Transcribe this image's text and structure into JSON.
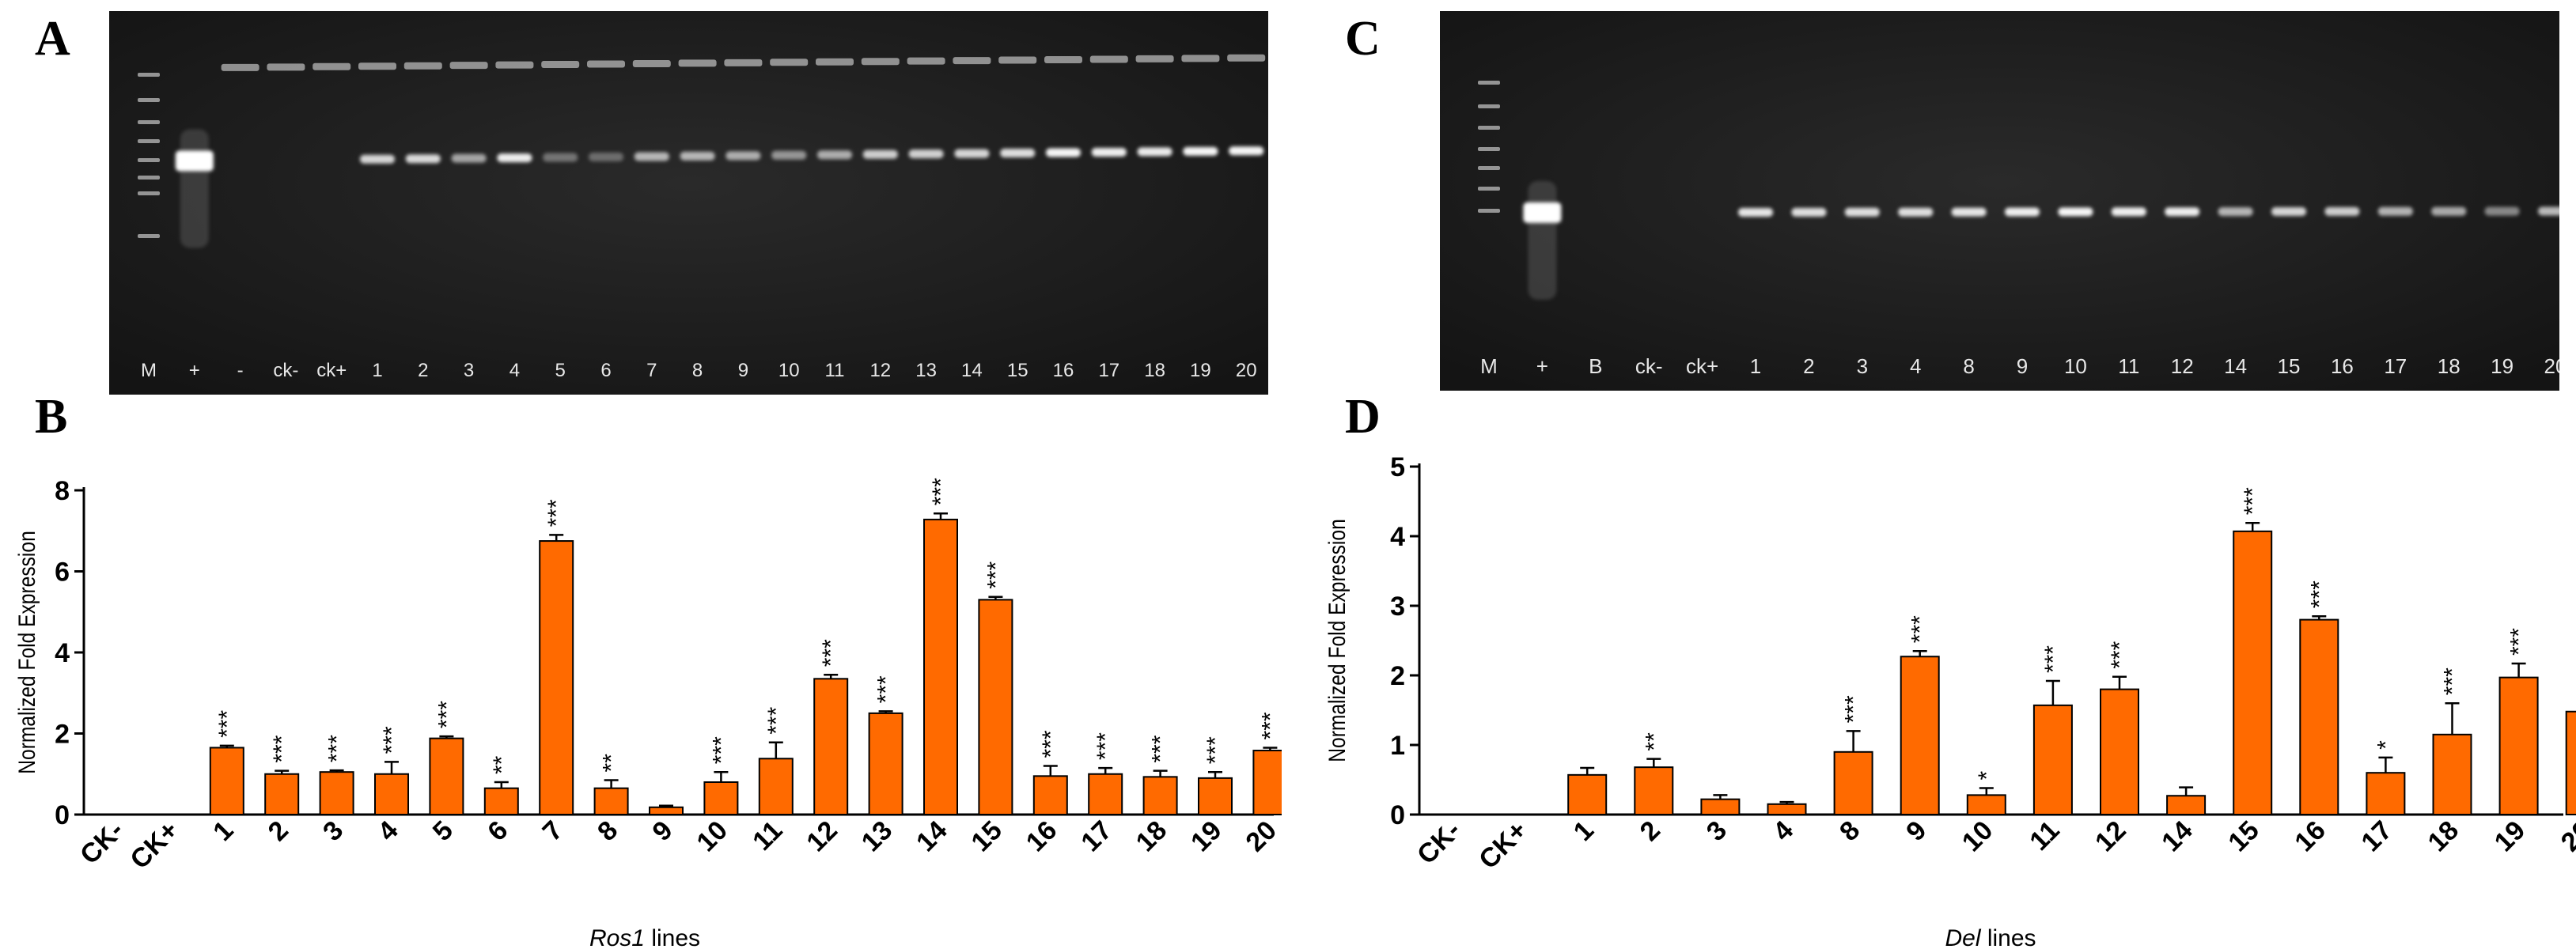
{
  "panels": {
    "a": {
      "letter": "A"
    },
    "b": {
      "letter": "B"
    },
    "c": {
      "letter": "C"
    },
    "d": {
      "letter": "D"
    }
  },
  "gel_a": {
    "lanes": [
      "M",
      "+",
      "-",
      "ck-",
      "ck+",
      "1",
      "2",
      "3",
      "4",
      "5",
      "6",
      "7",
      "8",
      "9",
      "10",
      "11",
      "12",
      "13",
      "14",
      "15",
      "16",
      "17",
      "18",
      "19",
      "20"
    ],
    "band_intensity": [
      0,
      1.0,
      0,
      0,
      0,
      0.75,
      0.78,
      0.45,
      0.9,
      0.15,
      0.1,
      0.55,
      0.55,
      0.5,
      0.35,
      0.5,
      0.7,
      0.72,
      0.75,
      0.8,
      0.95,
      0.9,
      0.88,
      0.95,
      0.95
    ]
  },
  "gel_c": {
    "lanes": [
      "M",
      "+",
      "B",
      "ck-",
      "ck+",
      "1",
      "2",
      "3",
      "4",
      "8",
      "9",
      "10",
      "11",
      "12",
      "14",
      "15",
      "16",
      "17",
      "18",
      "19",
      "20"
    ],
    "band_intensity": [
      0,
      1.0,
      0,
      0,
      0,
      0.85,
      0.8,
      0.8,
      0.8,
      0.85,
      0.9,
      0.95,
      0.9,
      0.9,
      0.55,
      0.75,
      0.7,
      0.55,
      0.5,
      0.3,
      0.6
    ]
  },
  "chart_data": [
    {
      "type": "bar",
      "ylabel": "Normalized Fold Expression",
      "xlabel_italic": "Ros1",
      "xlabel_rest": " lines",
      "ylim": [
        0,
        8
      ],
      "yticks": [
        0,
        2,
        4,
        6,
        8
      ],
      "color": "#ff6a00",
      "categories": [
        "CK-",
        "CK+",
        "1",
        "2",
        "3",
        "4",
        "5",
        "6",
        "7",
        "8",
        "9",
        "10",
        "11",
        "12",
        "13",
        "14",
        "15",
        "16",
        "17",
        "18",
        "19",
        "20"
      ],
      "values": [
        0,
        0,
        1.65,
        1.0,
        1.05,
        1.0,
        1.88,
        0.65,
        6.75,
        0.65,
        0.18,
        0.8,
        1.38,
        3.35,
        2.5,
        7.28,
        5.3,
        0.95,
        1.0,
        0.93,
        0.9,
        1.58
      ],
      "errors": [
        0,
        0,
        0.05,
        0.08,
        0.04,
        0.3,
        0.05,
        0.15,
        0.15,
        0.2,
        0.04,
        0.25,
        0.4,
        0.1,
        0.05,
        0.15,
        0.07,
        0.25,
        0.15,
        0.15,
        0.15,
        0.07
      ],
      "significance": [
        "",
        "",
        "***",
        "***",
        "***",
        "***",
        "***",
        "**",
        "***",
        "**",
        "",
        "***",
        "***",
        "***",
        "***",
        "***",
        "***",
        "***",
        "***",
        "***",
        "***",
        "***"
      ]
    },
    {
      "type": "bar",
      "ylabel": "Normalized Fold Expression",
      "xlabel_italic": "Del",
      "xlabel_rest": " lines",
      "ylim": [
        0,
        5
      ],
      "yticks": [
        0,
        1,
        2,
        3,
        4,
        5
      ],
      "color": "#ff6a00",
      "categories": [
        "CK-",
        "CK+",
        "1",
        "2",
        "3",
        "4",
        "8",
        "9",
        "10",
        "11",
        "12",
        "14",
        "15",
        "16",
        "17",
        "18",
        "19",
        "20"
      ],
      "values": [
        0,
        0,
        0.57,
        0.68,
        0.22,
        0.15,
        0.9,
        2.27,
        0.28,
        1.57,
        1.8,
        0.27,
        4.07,
        2.8,
        0.6,
        1.15,
        1.97,
        1.48
      ],
      "errors": [
        0,
        0,
        0.1,
        0.12,
        0.06,
        0.03,
        0.3,
        0.08,
        0.1,
        0.35,
        0.18,
        0.12,
        0.12,
        0.05,
        0.22,
        0.45,
        0.2,
        0.25
      ],
      "significance": [
        "",
        "",
        "",
        "**",
        "",
        "",
        "***",
        "***",
        "*",
        "***",
        "***",
        "",
        "***",
        "***",
        "*",
        "***",
        "***",
        "***"
      ]
    }
  ]
}
